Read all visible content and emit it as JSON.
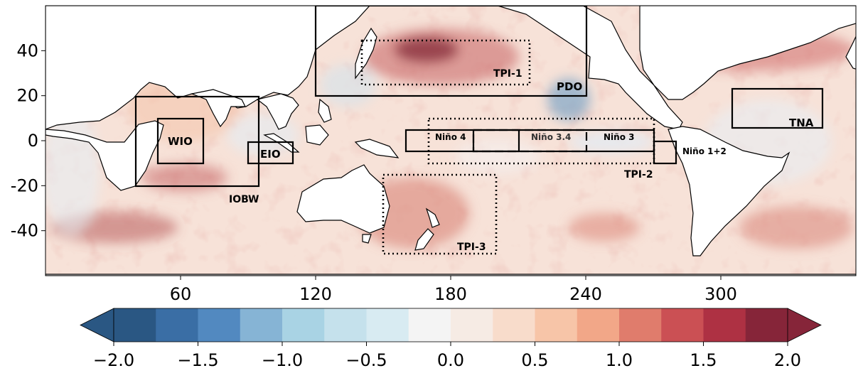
{
  "map": {
    "lon_range": [
      0,
      360
    ],
    "lat_range": [
      -60,
      60
    ],
    "x_ticks": [
      "60",
      "120",
      "180",
      "240",
      "300"
    ],
    "y_ticks": [
      "40",
      "20",
      "0",
      "-20",
      "-40"
    ],
    "regions": [
      {
        "id": "wio",
        "label": "WIO",
        "style": "solid"
      },
      {
        "id": "eio",
        "label": "EIO",
        "style": "solid"
      },
      {
        "id": "iobw",
        "label": "IOBW",
        "style": "solid"
      },
      {
        "id": "pdo",
        "label": "PDO",
        "style": "solid"
      },
      {
        "id": "tpi1",
        "label": "TPI-1",
        "style": "dotted"
      },
      {
        "id": "tpi2",
        "label": "TPI-2",
        "style": "dotted"
      },
      {
        "id": "tpi3",
        "label": "TPI-3",
        "style": "dotted"
      },
      {
        "id": "nino4",
        "label": "Niño 4",
        "style": "solid"
      },
      {
        "id": "nino34",
        "label": "Niño 3.4",
        "style": "dashed"
      },
      {
        "id": "nino3",
        "label": "Niño 3",
        "style": "solid"
      },
      {
        "id": "nino12",
        "label": "Niño 1+2",
        "style": "solid"
      },
      {
        "id": "tna",
        "label": "TNA",
        "style": "solid"
      }
    ]
  },
  "colorbar": {
    "ticks": [
      "−2.0",
      "−1.5",
      "−1.0",
      "−0.5",
      "0.0",
      "0.5",
      "1.0",
      "1.5",
      "2.0"
    ],
    "colors": [
      "#2a5783",
      "#3a6ea5",
      "#5289c0",
      "#86b4d5",
      "#a9d3e4",
      "#c5e1ec",
      "#d8ebf2",
      "#f4f4f4",
      "#f6ebe4",
      "#f8dccb",
      "#f7c5a8",
      "#f2a788",
      "#e07c6c",
      "#cb5054",
      "#ae3143",
      "#862539"
    ],
    "under_color": "#2a5783",
    "over_color": "#862539"
  }
}
